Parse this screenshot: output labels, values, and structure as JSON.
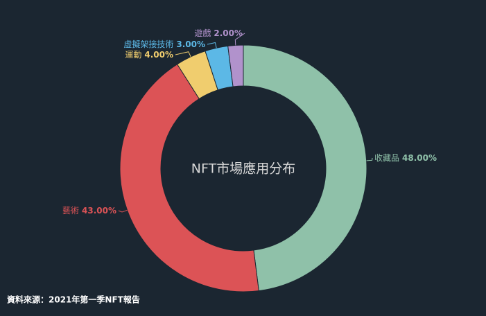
{
  "chart_data": {
    "type": "donut",
    "title": "NFT市場應用分布",
    "source": "資料來源：2021年第一季NFT報告",
    "categories": [
      "收藏品",
      "藝術",
      "運動",
      "虛擬架接技術",
      "遊戲"
    ],
    "values": [
      48,
      43,
      4,
      3,
      2
    ],
    "value_labels": [
      "48.00%",
      "43.00%",
      "4.00%",
      "3.00%",
      "2.00%"
    ],
    "colors": [
      "#8fc1a9",
      "#dc5356",
      "#f0cd6e",
      "#5cb8e6",
      "#b192cc"
    ]
  }
}
